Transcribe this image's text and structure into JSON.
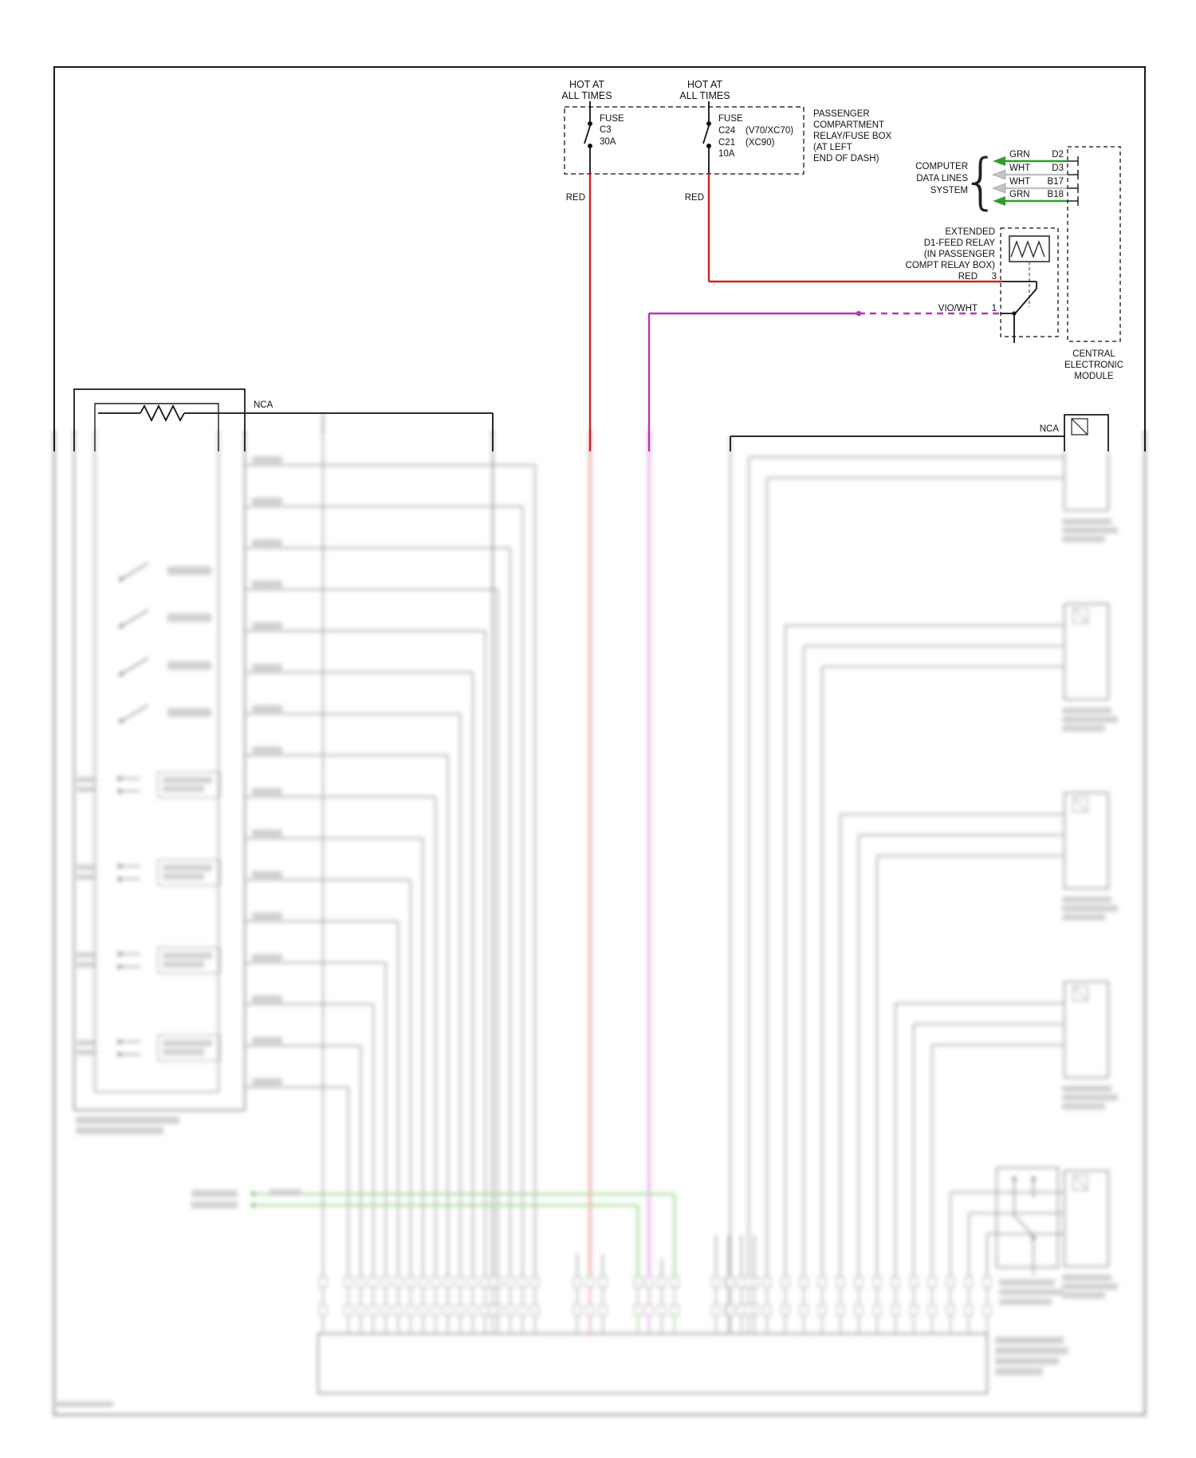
{
  "colors": {
    "red_wire": "#cc2222",
    "green_wire": "#2f9e2f",
    "violet_wire": "#bb33bb",
    "white_wire": "#c4c4c4",
    "blur_gray": "#8f8f8f",
    "blur_green": "#7ec76e",
    "blur_red": "#e06666",
    "blur_violet": "#d36fd3"
  },
  "power": {
    "hot_left": {
      "line1": "HOT AT",
      "line2": "ALL TIMES"
    },
    "hot_right": {
      "line1": "HOT AT",
      "line2": "ALL TIMES"
    },
    "fuse_left": {
      "name": "FUSE",
      "id": "C3",
      "rating": "30A"
    },
    "fuse_right": {
      "name": "FUSE",
      "id1": "C24",
      "id1_note": "(V70/XC70)",
      "id2": "C21",
      "id2_note": "(XC90)",
      "rating": "10A"
    },
    "fusebox_label": {
      "line1": "PASSENGER",
      "line2": "COMPARTMENT",
      "line3": "RELAY/FUSE BOX",
      "line4": "(AT LEFT",
      "line5": "END OF DASH)"
    },
    "wire_left_color": "RED",
    "wire_right_color": "RED"
  },
  "data_lines": {
    "label": {
      "line1": "COMPUTER",
      "line2": "DATA LINES",
      "line3": "SYSTEM"
    },
    "brace": "{",
    "wires": [
      {
        "color": "GRN",
        "terminal": "D2"
      },
      {
        "color": "WHT",
        "terminal": "D3"
      },
      {
        "color": "WHT",
        "terminal": "B17"
      },
      {
        "color": "GRN",
        "terminal": "B18"
      }
    ]
  },
  "relay": {
    "label": {
      "line1": "EXTENDED",
      "line2": "D1-FEED RELAY",
      "line3": "(IN PASSENGER",
      "line4": "COMPT RELAY BOX)"
    },
    "pin3": {
      "wire": "RED",
      "number": "3"
    },
    "pin1": {
      "wire": "VIO/WHT",
      "number": "1"
    }
  },
  "cem": {
    "label": {
      "line1": "CENTRAL",
      "line2": "ELECTRONIC",
      "line3": "MODULE"
    }
  },
  "nca_left": "NCA",
  "nca_right": "NCA"
}
